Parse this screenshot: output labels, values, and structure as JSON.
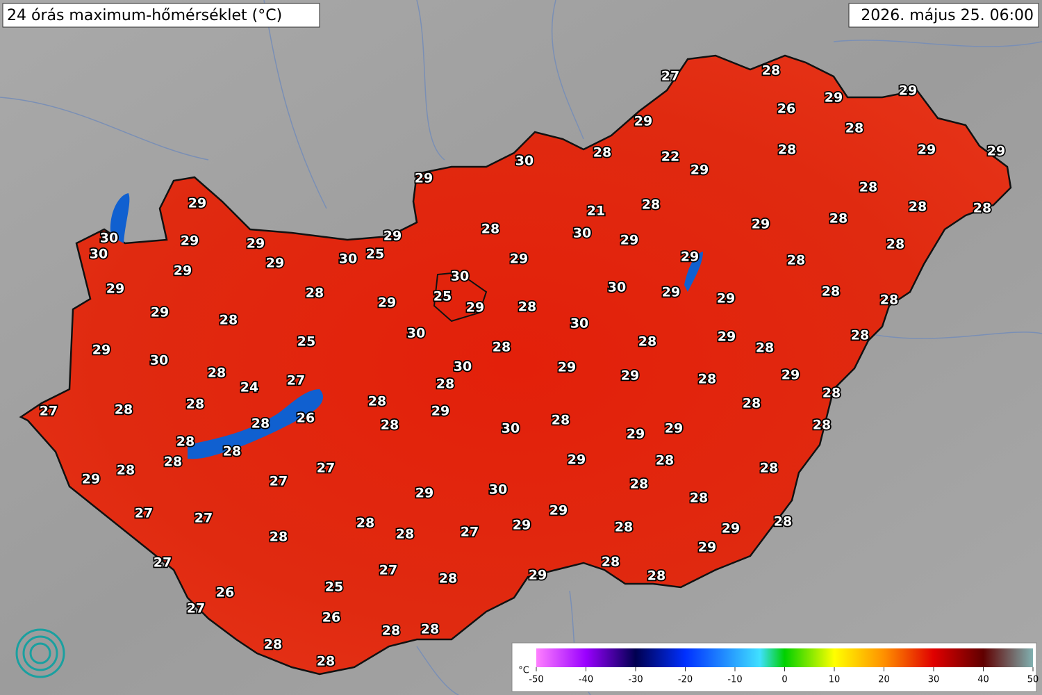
{
  "title": "24 órás maximum-hőmérséklet (°C)",
  "datetime": "2026. május 25. 06:00",
  "stations": [
    27,
    28,
    29,
    29,
    26,
    29,
    28,
    28,
    29,
    29,
    30,
    28,
    22,
    29,
    29,
    28,
    21,
    28,
    28,
    28,
    29,
    28,
    30,
    29,
    28,
    29,
    30,
    29,
    29,
    29,
    28,
    30,
    25,
    30,
    29,
    29,
    29,
    28,
    29,
    30,
    30,
    29,
    28,
    25,
    29,
    29,
    28,
    29,
    29,
    28,
    28,
    29,
    28,
    30,
    30,
    29,
    28,
    25,
    28,
    28,
    28,
    29,
    30,
    30,
    29,
    28,
    29,
    28,
    29,
    27,
    24,
    28,
    28,
    27,
    28,
    28,
    28,
    28,
    29,
    26,
    28,
    28,
    30,
    28,
    29,
    29,
    28,
    28,
    28,
    28,
    29,
    28,
    27,
    28,
    29,
    27,
    28,
    28,
    30,
    29,
    28,
    27,
    27,
    29,
    29,
    28,
    28,
    28,
    28,
    27,
    29,
    28,
    29,
    27,
    27,
    28,
    29,
    28,
    28,
    25,
    26,
    27,
    26,
    28,
    28,
    28,
    28
  ],
  "colorbar": {
    "unit": "°C",
    "lim": [
      -50,
      50
    ],
    "ticks": [
      -50,
      -40,
      -30,
      -20,
      -10,
      0,
      10,
      20,
      30,
      40,
      50
    ]
  }
}
